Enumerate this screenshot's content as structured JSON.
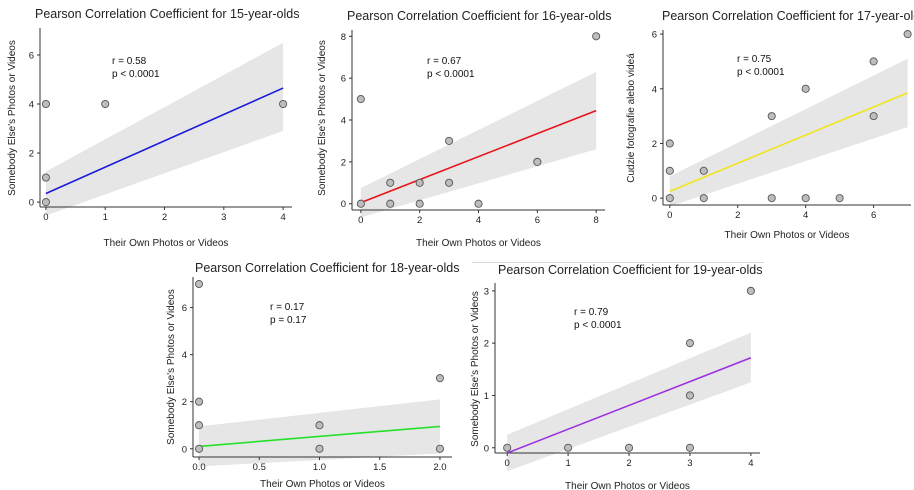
{
  "chart_data": [
    {
      "type": "scatter",
      "title": "Pearson Correlation Coefficient for 15-year-olds",
      "xlabel": "Their Own Photos or Videos",
      "ylabel": "Somebody Else's Photos or Videos",
      "xticks": [
        0,
        1,
        2,
        3,
        4
      ],
      "yticks": [
        0,
        2,
        4,
        6
      ],
      "xlim": [
        -0.1,
        4.15
      ],
      "ylim": [
        -0.2,
        7.1
      ],
      "points": [
        [
          0,
          0
        ],
        [
          0,
          1
        ],
        [
          0,
          4
        ],
        [
          1,
          4
        ],
        [
          4,
          4
        ]
      ],
      "fit": {
        "x": [
          0,
          4
        ],
        "y": [
          0.35,
          4.65
        ],
        "color": "#1a1adb"
      },
      "band": {
        "lower": [
          -0.55,
          2.9
        ],
        "upper": [
          1.25,
          6.5
        ]
      },
      "annotation": [
        "r = 0.58",
        "p < 0.0001"
      ]
    },
    {
      "type": "scatter",
      "title": "Pearson Correlation Coefficient for 16-year-olds",
      "xlabel": "Their Own Photos or Videos",
      "ylabel": "Somebody Else's Photos or Videos",
      "xticks": [
        0,
        2,
        4,
        6,
        8
      ],
      "yticks": [
        0,
        2,
        4,
        6,
        8
      ],
      "xlim": [
        -0.3,
        8.3
      ],
      "ylim": [
        -0.3,
        8.3
      ],
      "points": [
        [
          0,
          0
        ],
        [
          0,
          5
        ],
        [
          1,
          1
        ],
        [
          1,
          0
        ],
        [
          2,
          1
        ],
        [
          2,
          0
        ],
        [
          3,
          3
        ],
        [
          3,
          1
        ],
        [
          4,
          0
        ],
        [
          6,
          2
        ],
        [
          8,
          8
        ]
      ],
      "fit": {
        "x": [
          0,
          8
        ],
        "y": [
          0.05,
          4.45
        ],
        "color": "#e8141c"
      },
      "band": {
        "lower": [
          -0.65,
          2.6
        ],
        "upper": [
          0.75,
          6.3
        ]
      },
      "annotation": [
        "r = 0.67",
        "p < 0.0001"
      ]
    },
    {
      "type": "scatter",
      "title": "Pearson Correlation Coefficient for 17-year-olds",
      "xlabel": "Their Own Photos or Videos",
      "ylabel": "Cudzie fotografie alebo videá",
      "xticks": [
        0,
        2,
        4,
        6
      ],
      "yticks": [
        0,
        2,
        4,
        6
      ],
      "xlim": [
        -0.2,
        7.1
      ],
      "ylim": [
        -0.25,
        6.15
      ],
      "points": [
        [
          0,
          0
        ],
        [
          0,
          1
        ],
        [
          0,
          2
        ],
        [
          1,
          0
        ],
        [
          1,
          1
        ],
        [
          3,
          3
        ],
        [
          3,
          0
        ],
        [
          4,
          4
        ],
        [
          4,
          0
        ],
        [
          5,
          0
        ],
        [
          6,
          3
        ],
        [
          6,
          5
        ],
        [
          7,
          6
        ]
      ],
      "fit": {
        "x": [
          0,
          7
        ],
        "y": [
          0.25,
          3.85
        ],
        "color": "#f0e51e"
      },
      "band": {
        "lower": [
          -0.3,
          2.6
        ],
        "upper": [
          0.8,
          5.1
        ]
      },
      "annotation": [
        "r = 0.75",
        "p < 0.0001"
      ]
    },
    {
      "type": "scatter",
      "title": "Pearson Correlation Coefficient for 18-year-olds",
      "xlabel": "Their Own Photos or Videos",
      "ylabel": "Somebody Else's Photos or Videos",
      "xticks": [
        "0.0",
        "0.5",
        "1.0",
        "1.5",
        "2.0"
      ],
      "xtick_values": [
        0,
        0.5,
        1,
        1.5,
        2
      ],
      "yticks": [
        0,
        2,
        4,
        6
      ],
      "xlim": [
        -0.05,
        2.1
      ],
      "ylim": [
        -0.35,
        7.3
      ],
      "points": [
        [
          0,
          0
        ],
        [
          0,
          1
        ],
        [
          0,
          2
        ],
        [
          0,
          7
        ],
        [
          1,
          0
        ],
        [
          1,
          1
        ],
        [
          2,
          3
        ],
        [
          2,
          0
        ]
      ],
      "fit": {
        "x": [
          0,
          2
        ],
        "y": [
          0.1,
          0.95
        ],
        "color": "#26e02a"
      },
      "band": {
        "lower": [
          -0.75,
          -0.2
        ],
        "upper": [
          0.95,
          2.1
        ]
      },
      "annotation": [
        "r = 0.17",
        "p = 0.17"
      ]
    },
    {
      "type": "scatter",
      "title": "Pearson Correlation Coefficient for 19-year-olds",
      "xlabel": "Their Own Photos or Videos",
      "ylabel": "Somebody Else's Photos or Videos",
      "xticks": [
        0,
        1,
        2,
        3,
        4
      ],
      "yticks": [
        0,
        1,
        2,
        3
      ],
      "xlim": [
        -0.2,
        4.15
      ],
      "ylim": [
        -0.1,
        3.15
      ],
      "points": [
        [
          0,
          0
        ],
        [
          1,
          0
        ],
        [
          2,
          0
        ],
        [
          3,
          0
        ],
        [
          3,
          1
        ],
        [
          3,
          2
        ],
        [
          4,
          3
        ]
      ],
      "fit": {
        "x": [
          0,
          4
        ],
        "y": [
          -0.1,
          1.72
        ],
        "color": "#9b30e0"
      },
      "band": {
        "lower": [
          -0.45,
          1.25
        ],
        "upper": [
          0.25,
          2.2
        ]
      },
      "annotation": [
        "r = 0.79",
        "p < 0.0001"
      ]
    }
  ]
}
